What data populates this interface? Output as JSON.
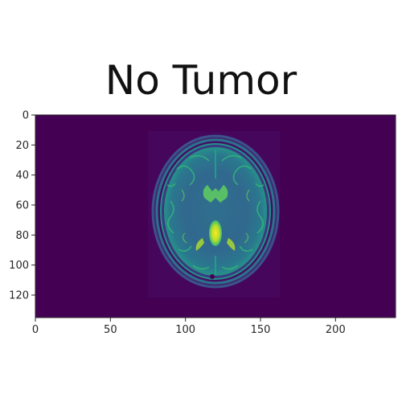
{
  "title": "No Tumor",
  "image": {
    "description": "axial brain MRI slice rendered with viridis colormap",
    "background_color": "#440154",
    "colormap": "viridis",
    "x_axis": {
      "min": 0,
      "max": 240,
      "ticks": [
        {
          "value": 0,
          "label": "0"
        },
        {
          "value": 50,
          "label": "50"
        },
        {
          "value": 100,
          "label": "100"
        },
        {
          "value": 150,
          "label": "150"
        },
        {
          "value": 200,
          "label": "200"
        }
      ]
    },
    "y_axis": {
      "min": 0,
      "max": 135,
      "inverted": true,
      "ticks": [
        {
          "value": 0,
          "label": "0"
        },
        {
          "value": 20,
          "label": "20"
        },
        {
          "value": 40,
          "label": "40"
        },
        {
          "value": 60,
          "label": "60"
        },
        {
          "value": 80,
          "label": "80"
        },
        {
          "value": 100,
          "label": "100"
        },
        {
          "value": 120,
          "label": "120"
        }
      ]
    }
  }
}
